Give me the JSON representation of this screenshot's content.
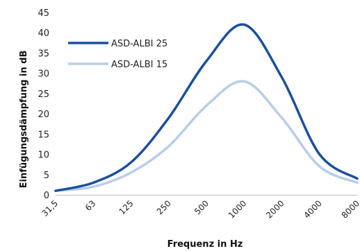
{
  "chart_data": {
    "type": "line",
    "title": "",
    "xlabel": "Frequenz in Hz",
    "ylabel": "Einfügungsdämpfung in dB",
    "categories": [
      "31,5",
      "63",
      "125",
      "250",
      "500",
      "1000",
      "2000",
      "4000",
      "8000"
    ],
    "ylim": [
      0,
      45
    ],
    "yticks": [
      0,
      5,
      10,
      15,
      20,
      25,
      30,
      35,
      40,
      45
    ],
    "grid": false,
    "legend_position": "top-left",
    "series": [
      {
        "name": "ASD-ALBI 25",
        "color": "#1b4f9c",
        "values": [
          1,
          3,
          8,
          19,
          33,
          42,
          29,
          10,
          4
        ]
      },
      {
        "name": "ASD-ALBI 15",
        "color": "#b8cde8",
        "values": [
          1,
          2,
          5.5,
          12,
          22,
          28,
          19,
          7,
          3
        ]
      }
    ]
  }
}
